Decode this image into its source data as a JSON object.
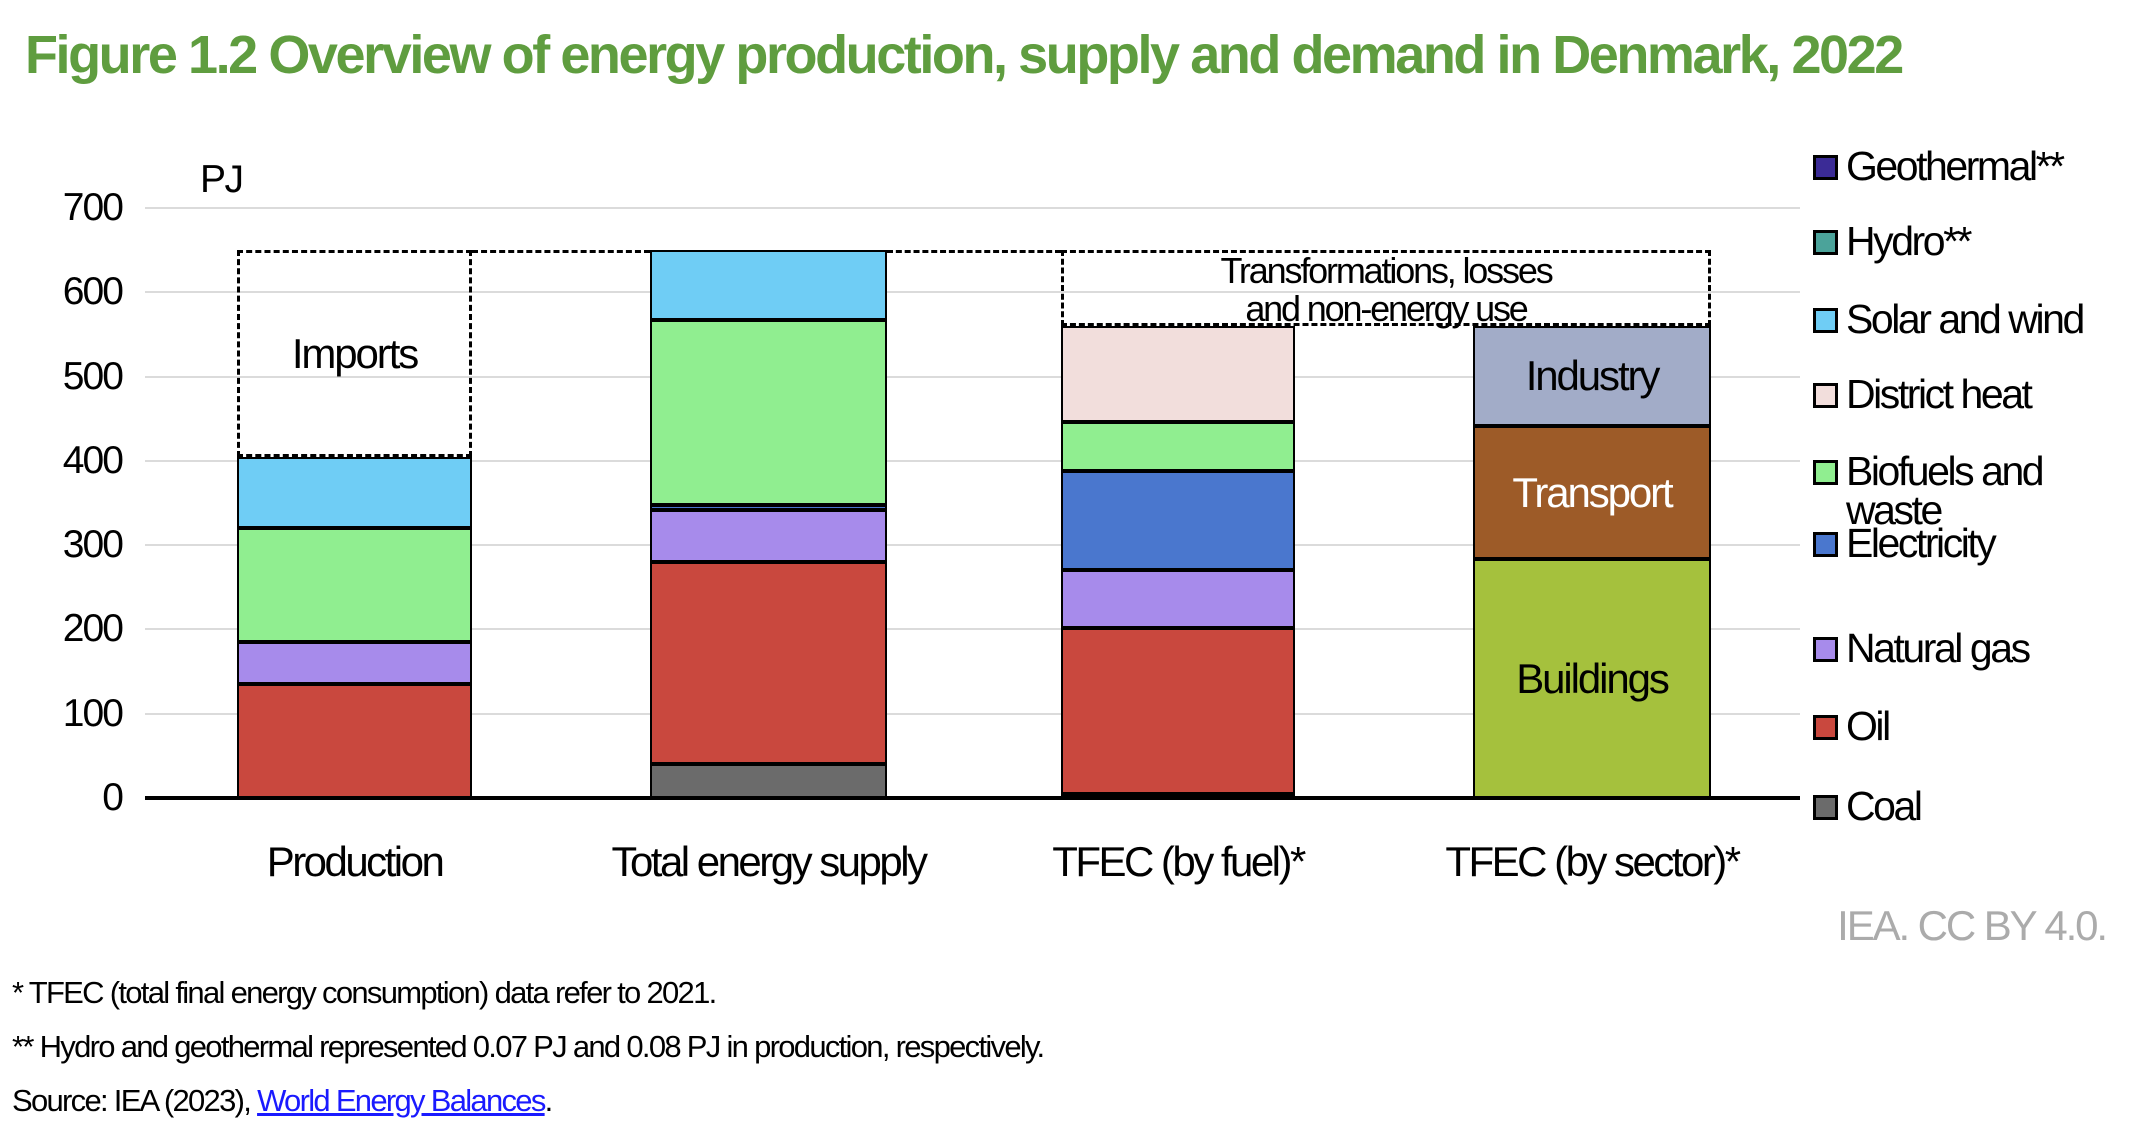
{
  "title": "Figure 1.2 Overview of energy production, supply and demand in Denmark, 2022",
  "credit": "IEA. CC BY 4.0.",
  "footnotes": {
    "line1": "* TFEC (total final energy consumption) data refer to 2021.",
    "line2": "** Hydro and geothermal represented 0.07 PJ and 0.08 PJ in production, respectively.",
    "source_prefix": "Source: IEA (2023), ",
    "source_link": "World Energy Balances",
    "source_suffix": "."
  },
  "colors": {
    "Coal": "#6B6B6B",
    "Oil": "#C9483E",
    "Natural gas": "#A78BEB",
    "Electricity": "#4A77CE",
    "Biofuels and waste": "#90EE90",
    "District heat": "#F2DEDC",
    "Solar and wind": "#6FCDF5",
    "Hydro": "#4BA39A",
    "Geothermal": "#3B2B96",
    "Industry": "#A2ACC8",
    "Transport": "#9D5B28",
    "Buildings": "#A5C13D",
    "title_green": "#5F9D3F",
    "gridline": "#DBDBDB",
    "credit_gray": "#ABABAB",
    "link_blue": "#1A1AFF"
  },
  "legend": {
    "position": "right",
    "items": [
      {
        "label": "Geothermal**",
        "series": "Geothermal"
      },
      {
        "label": "Hydro**",
        "series": "Hydro"
      },
      {
        "label": "Solar and wind",
        "series": "Solar and wind"
      },
      {
        "label": "District heat",
        "series": "District heat"
      },
      {
        "label": "Biofuels and\nwaste",
        "series": "Biofuels and waste"
      },
      {
        "label": "Electricity",
        "series": "Electricity"
      },
      {
        "label": "Natural gas",
        "series": "Natural gas"
      },
      {
        "label": "Oil",
        "series": "Oil"
      },
      {
        "label": "Coal",
        "series": "Coal"
      }
    ]
  },
  "chart_data": {
    "type": "bar",
    "stacked": true,
    "title": "Figure 1.2 Overview of energy production, supply and demand in Denmark, 2022",
    "xlabel": "",
    "ylabel": "PJ",
    "ylim": [
      0,
      700
    ],
    "yticks": [
      0,
      100,
      200,
      300,
      400,
      500,
      600,
      700
    ],
    "grid": true,
    "legend_position": "right",
    "categories": [
      "Production",
      "Total energy supply",
      "TFEC (by fuel)*",
      "TFEC (by sector)*"
    ],
    "series_order_bottom_to_top": [
      "Coal",
      "Oil",
      "Natural gas",
      "Electricity",
      "Biofuels and waste",
      "District heat",
      "Solar and wind",
      "Buildings",
      "Transport",
      "Industry"
    ],
    "bars": [
      {
        "category": "Production",
        "total": 405,
        "segments": [
          {
            "series": "Oil",
            "value": 135
          },
          {
            "series": "Natural gas",
            "value": 50
          },
          {
            "series": "Biofuels and waste",
            "value": 135
          },
          {
            "series": "Solar and wind",
            "value": 85
          }
        ]
      },
      {
        "category": "Total energy supply",
        "total": 650,
        "segments": [
          {
            "series": "Coal",
            "value": 40
          },
          {
            "series": "Oil",
            "value": 240
          },
          {
            "series": "Natural gas",
            "value": 62
          },
          {
            "series": "Electricity",
            "value": 6
          },
          {
            "series": "Biofuels and waste",
            "value": 219
          },
          {
            "series": "Solar and wind",
            "value": 83
          }
        ]
      },
      {
        "category": "TFEC (by fuel)*",
        "total": 560,
        "segments": [
          {
            "series": "Coal",
            "value": 5
          },
          {
            "series": "Oil",
            "value": 197
          },
          {
            "series": "Natural gas",
            "value": 68
          },
          {
            "series": "Electricity",
            "value": 118
          },
          {
            "series": "Biofuels and waste",
            "value": 58
          },
          {
            "series": "District heat",
            "value": 114
          }
        ]
      },
      {
        "category": "TFEC (by sector)*",
        "total": 560,
        "segments": [
          {
            "series": "Buildings",
            "value": 283,
            "label": "Buildings",
            "label_color": "#000000"
          },
          {
            "series": "Transport",
            "value": 158,
            "label": "Transport",
            "label_color": "#FFFFFF"
          },
          {
            "series": "Industry",
            "value": 119,
            "label": "Industry",
            "label_color": "#000000"
          }
        ]
      }
    ],
    "annotations": {
      "imports_box": {
        "label": "Imports",
        "bar": "Production",
        "from": 405,
        "to": 650
      },
      "transformations_box": {
        "label_lines": [
          "Transformations, losses",
          "and non-energy use"
        ],
        "from": 560,
        "to": 650,
        "span_bars": [
          "TFEC (by fuel)*",
          "TFEC (by sector)*"
        ]
      },
      "dashed_level": 650
    }
  }
}
